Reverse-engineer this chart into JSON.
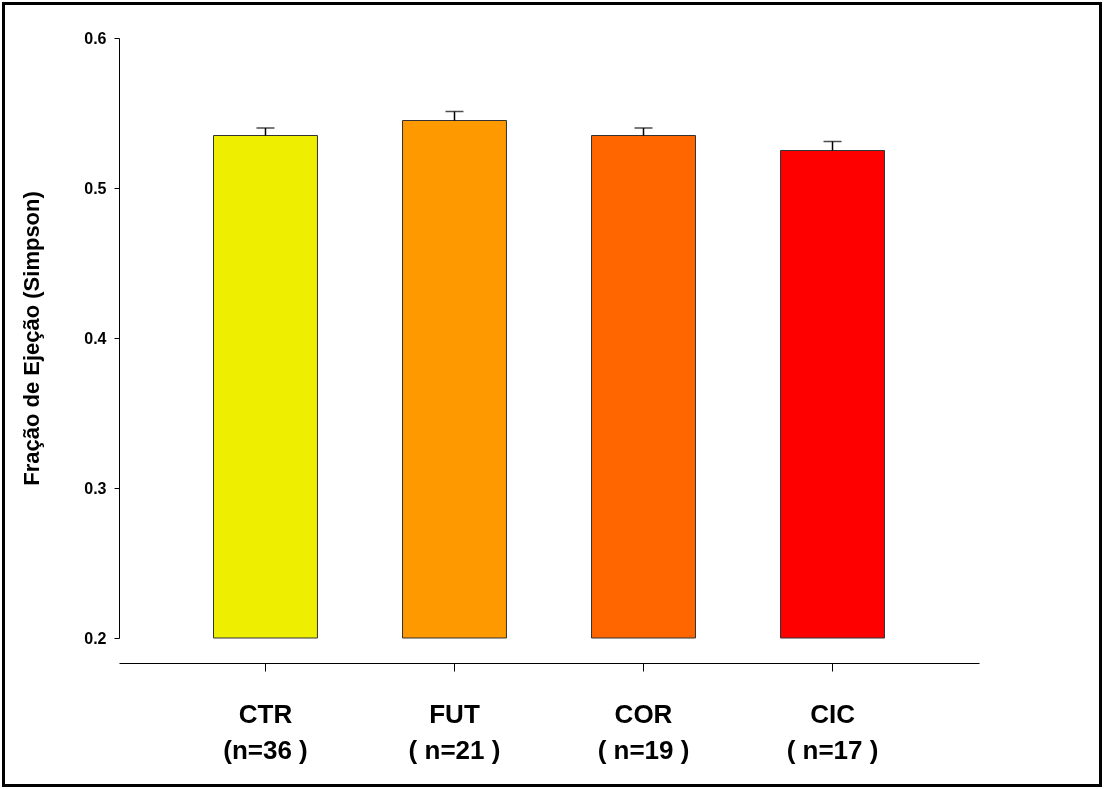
{
  "chart_data": {
    "type": "bar",
    "ylabel": "Fração de Ejeção (Simpson)",
    "categories": [
      "CTR\n(n=36  )",
      "FUT\n( n=21  )",
      "COR\n( n=19  )",
      "CIC\n( n=17  )"
    ],
    "values": [
      0.535,
      0.545,
      0.535,
      0.525
    ],
    "errors": [
      0.005,
      0.006,
      0.005,
      0.006
    ],
    "colors": [
      "#eeee00",
      "#ff9900",
      "#ff6600",
      "#ff0000"
    ],
    "ylim": [
      0.2,
      0.6
    ],
    "yticks": [
      0.2,
      0.3,
      0.4,
      0.5,
      0.6
    ]
  }
}
